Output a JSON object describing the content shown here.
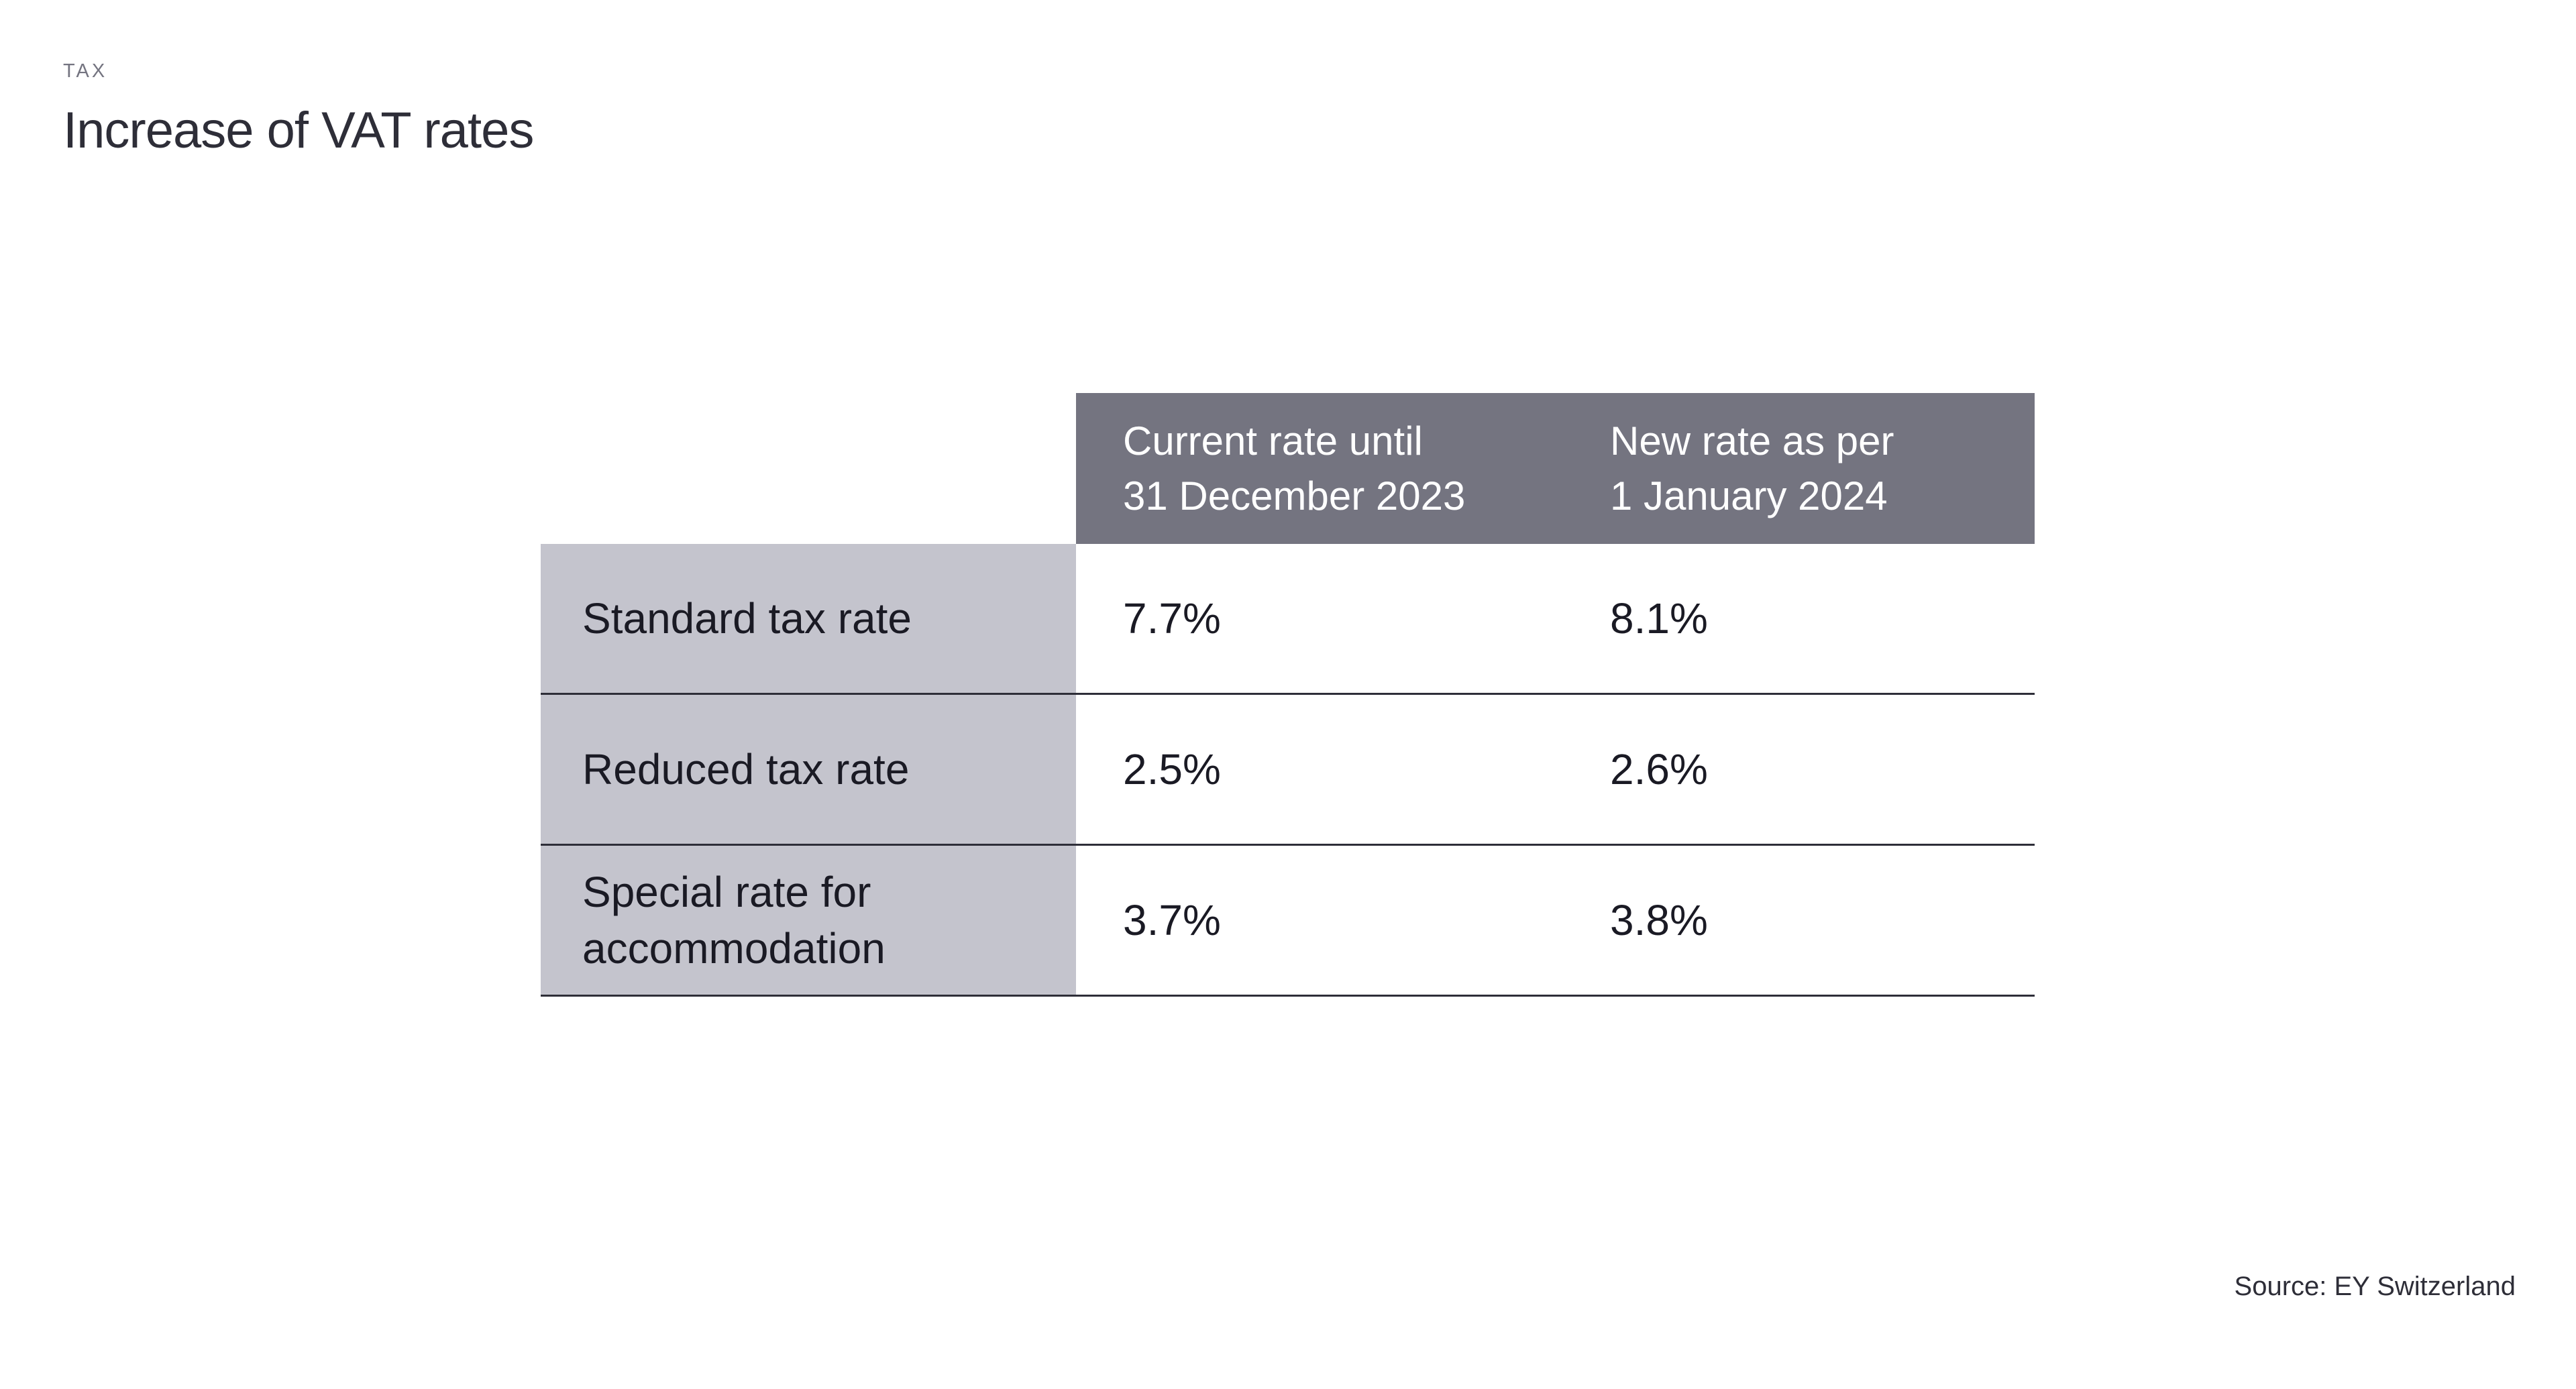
{
  "page": {
    "eyebrow": "TAX",
    "title": "Increase of VAT rates",
    "source": "Source: EY Switzerland"
  },
  "table": {
    "columns": [
      {
        "line1": "Current rate until",
        "line2": "31 December 2023"
      },
      {
        "line1": "New rate as per",
        "line2": "1 January 2024"
      }
    ],
    "rows": [
      {
        "label": "Standard tax rate",
        "current": "7.7%",
        "new": "8.1%"
      },
      {
        "label": "Reduced tax rate",
        "current": "2.5%",
        "new": "2.6%"
      },
      {
        "label": "Special rate for accommodation",
        "current": "3.7%",
        "new": "3.8%"
      }
    ]
  },
  "colors": {
    "header_bg": "#747480",
    "label_column_bg": "#c4c4cd",
    "row_divider": "#2e2e38",
    "title_text": "#2e2e38",
    "eyebrow_text": "#747480",
    "header_text": "#ffffff",
    "body_text": "#1a1a24",
    "background": "#ffffff"
  },
  "chart_data": {
    "type": "table",
    "title": "Increase of VAT rates",
    "subtitle": "TAX",
    "categories": [
      "Standard tax rate",
      "Reduced tax rate",
      "Special rate for accommodation"
    ],
    "series": [
      {
        "name": "Current rate until 31 December 2023",
        "values": [
          "7.7%",
          "2.5%",
          "3.7%"
        ]
      },
      {
        "name": "New rate as per 1 January 2024",
        "values": [
          "8.1%",
          "2.6%",
          "3.8%"
        ]
      }
    ],
    "source": "Source: EY Switzerland"
  }
}
